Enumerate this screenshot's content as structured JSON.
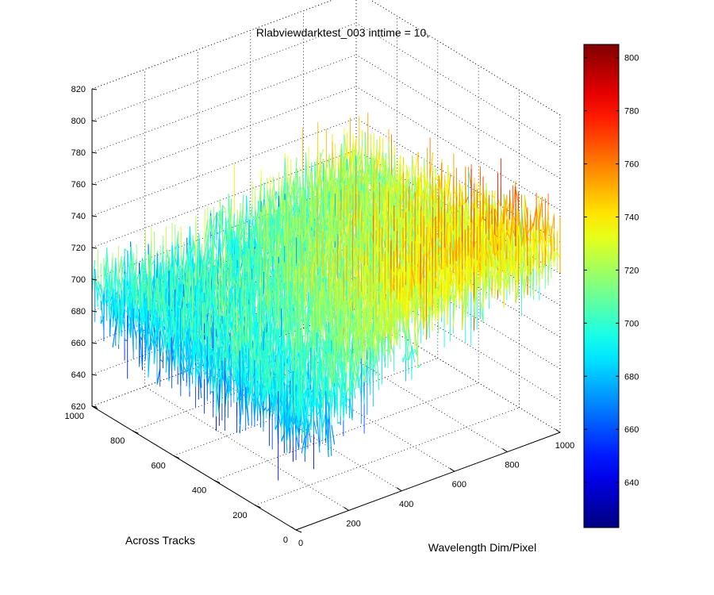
{
  "chart_data": {
    "type": "surface",
    "title": "Rlabviewdarktest_003 inttime = 10,",
    "xlabel": "Wavelength Dim/Pixel",
    "ylabel": "Across Tracks",
    "zlabel": "",
    "xlim": [
      0,
      1000
    ],
    "ylim": [
      0,
      1000
    ],
    "zlim": [
      620,
      820
    ],
    "x_ticks": [
      0,
      200,
      400,
      600,
      800,
      1000
    ],
    "y_ticks": [
      0,
      200,
      400,
      600,
      800,
      1000
    ],
    "z_ticks": [
      620,
      640,
      660,
      680,
      700,
      720,
      740,
      760,
      780,
      800,
      820
    ],
    "grid": true,
    "colormap": "jet",
    "colorbar": {
      "position": "right",
      "clim": [
        623,
        805
      ],
      "ticks": [
        640,
        660,
        680,
        700,
        720,
        740,
        760,
        780,
        800
      ]
    },
    "surface_profile": {
      "description_x": "mean level vs wavelength pixel (0..1000)",
      "x": [
        0,
        100,
        200,
        300,
        400,
        500,
        600,
        700,
        800,
        900,
        1000
      ],
      "y0_level": [
        690,
        688,
        698,
        715,
        730,
        735,
        735,
        738,
        740,
        738,
        735
      ],
      "y1000_level": [
        690,
        688,
        685,
        683,
        682,
        690,
        695,
        700,
        705,
        708,
        710
      ],
      "noise_amplitude": 18
    }
  }
}
